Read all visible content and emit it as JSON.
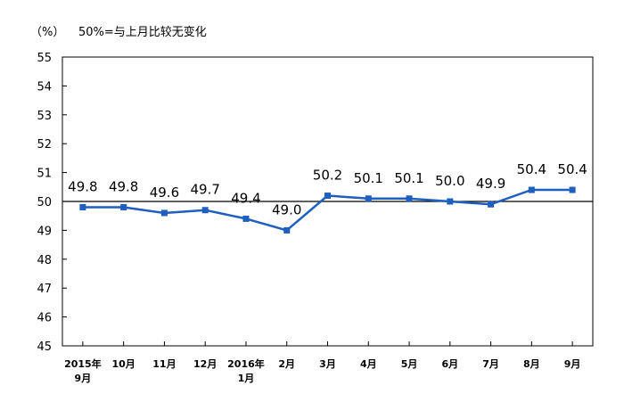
{
  "chart_data": {
    "type": "line",
    "unit_label": "（%）",
    "reference_note": "50%=与上月比较无变化",
    "reference_value": 50,
    "categories": [
      [
        "2015年",
        "9月"
      ],
      [
        "10月"
      ],
      [
        "11月"
      ],
      [
        "12月"
      ],
      [
        "2016年",
        "1月"
      ],
      [
        "2月"
      ],
      [
        "3月"
      ],
      [
        "4月"
      ],
      [
        "5月"
      ],
      [
        "6月"
      ],
      [
        "7月"
      ],
      [
        "8月"
      ],
      [
        "9月"
      ]
    ],
    "values": [
      49.8,
      49.8,
      49.6,
      49.7,
      49.4,
      49.0,
      50.2,
      50.1,
      50.1,
      50.0,
      49.9,
      50.4,
      50.4
    ],
    "data_labels": [
      "49.8",
      "49.8",
      "49.6",
      "49.7",
      "49.4",
      "49.0",
      "50.2",
      "50.1",
      "50.1",
      "50.0",
      "49.9",
      "50.4",
      "50.4"
    ],
    "ylim": [
      45,
      55
    ],
    "yticks": [
      "45",
      "46",
      "47",
      "48",
      "49",
      "50",
      "51",
      "52",
      "53",
      "54",
      "55"
    ],
    "grid": false,
    "legend": "none",
    "colors": {
      "series": "#1f5fbf",
      "reference_line": "#000000",
      "axis": "#000000"
    }
  }
}
